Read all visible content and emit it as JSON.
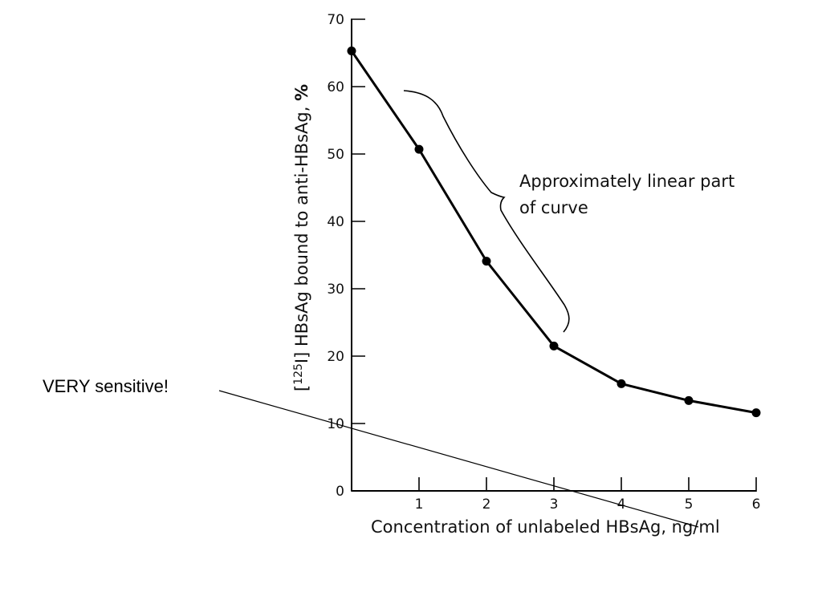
{
  "chart_data": {
    "type": "line",
    "x": [
      0,
      1,
      2,
      3,
      4,
      5,
      6
    ],
    "values": [
      65.3,
      50.7,
      34.1,
      21.5,
      15.9,
      13.4,
      11.6
    ],
    "xlabel": "Concentration of unlabeled HBsAg, ng/ml",
    "ylabel": {
      "prefix": "[",
      "sup": "125",
      "main": "I] HBsAg bound to anti-HBsAg, ",
      "bold": "%"
    },
    "xticks": [
      "1",
      "2",
      "3",
      "4",
      "5",
      "6"
    ],
    "yticks": [
      "0",
      "10",
      "20",
      "30",
      "40",
      "50",
      "60",
      "70"
    ],
    "xlim": [
      0,
      6
    ],
    "ylim": [
      0,
      70
    ],
    "grid": false,
    "annotation": {
      "line1": "Approximately linear part",
      "line2": "of curve",
      "x_range": [
        1,
        3
      ]
    },
    "colors": {
      "line": "#000000",
      "marker": "#000000"
    }
  },
  "note": {
    "text": "VERY sensitive!"
  }
}
